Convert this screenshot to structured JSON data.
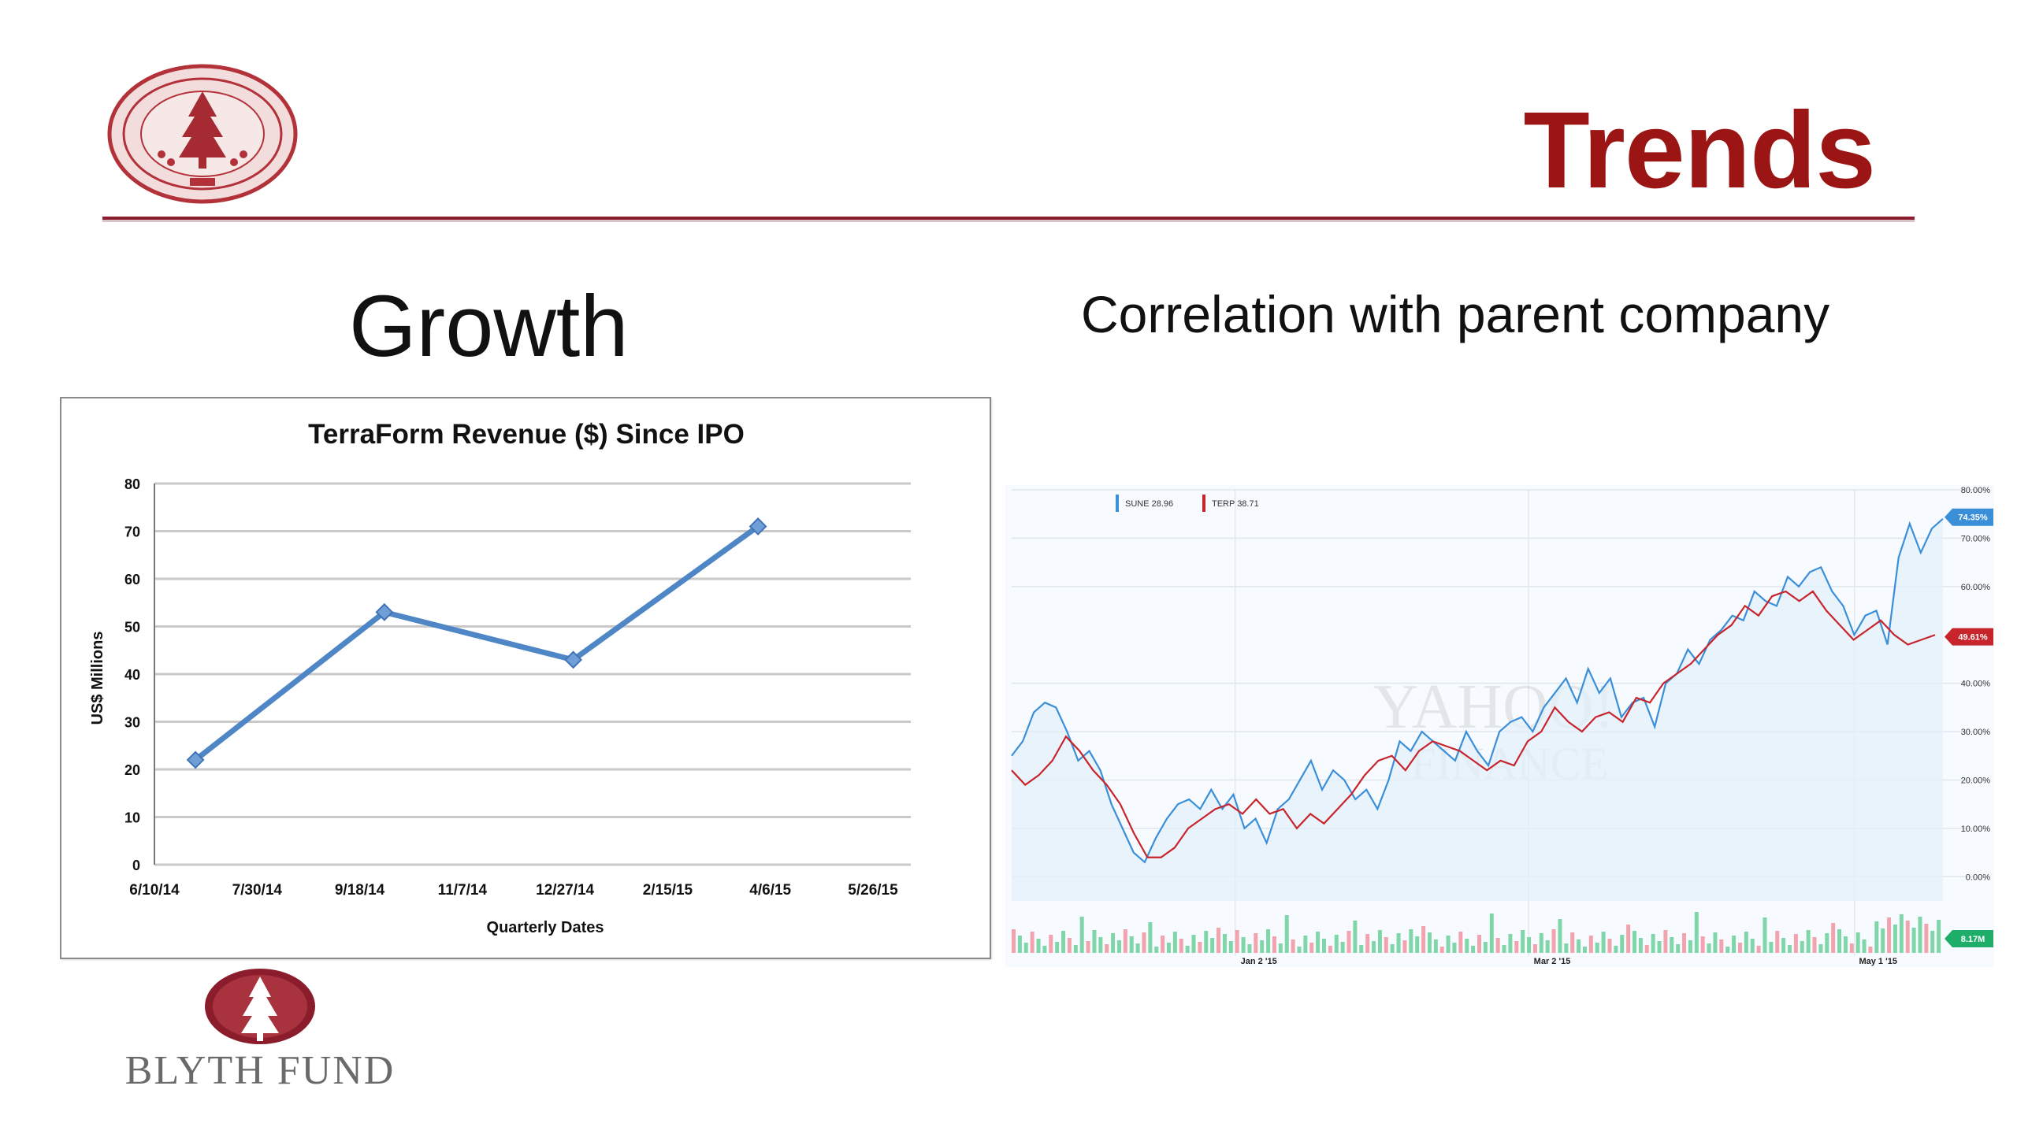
{
  "slide": {
    "title": "Trends",
    "heading_left": "Growth",
    "heading_right": "Correlation with parent company",
    "logo_text": "Blyth Fund",
    "accent_color": "#9b1515",
    "rule_color": "#8a1c2c"
  },
  "chart_data": [
    {
      "type": "line",
      "title": "TerraForm Revenue ($) Since IPO",
      "xlabel": "Quarterly Dates",
      "ylabel": "US$ Millions",
      "x_ticks": [
        "6/10/14",
        "7/30/14",
        "9/18/14",
        "11/7/14",
        "12/27/14",
        "2/15/15",
        "4/6/15",
        "5/26/15"
      ],
      "y_ticks": [
        0,
        10,
        20,
        30,
        40,
        50,
        60,
        70,
        80
      ],
      "ylim": [
        0,
        80
      ],
      "grid": true,
      "series": [
        {
          "color": "#4f86c6",
          "points": [
            {
              "x": "2014-06-30",
              "y": 22
            },
            {
              "x": "2014-09-30",
              "y": 53
            },
            {
              "x": "2014-12-31",
              "y": 43
            },
            {
              "x": "2015-03-31",
              "y": 71
            }
          ]
        }
      ]
    },
    {
      "type": "line",
      "legend": [
        {
          "label": "SUNE 28.96",
          "color": "#3a8fd8"
        },
        {
          "label": "TERP 38.71",
          "color": "#c8242c"
        }
      ],
      "x_ticks": [
        "Jan 2 '15",
        "Mar 2 '15",
        "May 1 '15"
      ],
      "y_ticks": [
        "0.00%",
        "10.00%",
        "20.00%",
        "30.00%",
        "40.00%",
        "60.00%",
        "70.00%",
        "80.00%"
      ],
      "ylim": [
        -5,
        80
      ],
      "grid": true,
      "end_labels": [
        {
          "text": "74.35%",
          "color": "#3a8fd8"
        },
        {
          "text": "49.61%",
          "color": "#c8242c"
        },
        {
          "text": "8.17M",
          "color": "#1fae6a"
        }
      ],
      "watermark": [
        "YAHOO!",
        "FINANCE"
      ],
      "series": [
        {
          "name": "SUNE",
          "color": "#3a8fd8",
          "values": [
            25,
            28,
            34,
            36,
            35,
            30,
            24,
            26,
            22,
            15,
            10,
            5,
            3,
            8,
            12,
            15,
            16,
            14,
            18,
            14,
            17,
            10,
            12,
            7,
            14,
            16,
            20,
            24,
            18,
            22,
            20,
            16,
            18,
            14,
            20,
            28,
            26,
            30,
            28,
            26,
            24,
            30,
            26,
            23,
            30,
            32,
            33,
            30,
            35,
            38,
            41,
            36,
            43,
            38,
            41,
            33,
            36,
            37,
            31,
            40,
            42,
            47,
            44,
            49,
            51,
            54,
            53,
            59,
            57,
            56,
            62,
            60,
            63,
            64,
            59,
            56,
            50,
            54,
            55,
            48,
            66,
            73,
            67,
            72,
            74
          ]
        },
        {
          "name": "TERP",
          "color": "#c8242c",
          "values": [
            22,
            19,
            21,
            24,
            29,
            26,
            22,
            19,
            15,
            9,
            4,
            4,
            6,
            10,
            12,
            14,
            15,
            13,
            16,
            13,
            14,
            10,
            13,
            11,
            14,
            17,
            21,
            24,
            25,
            22,
            26,
            28,
            27,
            26,
            24,
            22,
            24,
            23,
            28,
            30,
            35,
            32,
            30,
            33,
            34,
            32,
            37,
            36,
            40,
            42,
            44,
            47,
            50,
            52,
            56,
            54,
            58,
            59,
            57,
            59,
            55,
            52,
            49,
            51,
            53,
            50,
            48,
            49,
            50
          ]
        }
      ],
      "volume": {
        "up_color": "#7fd6a8",
        "down_color": "#f3a3ad"
      }
    }
  ]
}
